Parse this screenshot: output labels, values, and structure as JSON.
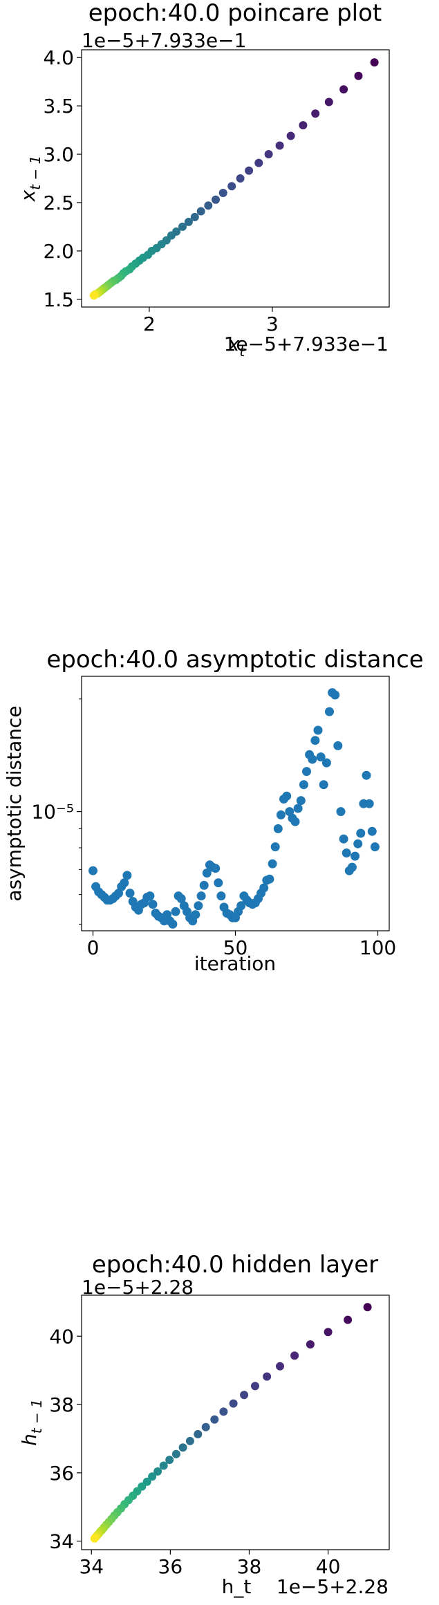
{
  "chart_data": [
    {
      "type": "scatter",
      "title": "epoch:40.0 poincare plot",
      "xlabel": "$x_t$",
      "ylabel": "$x_{t-1}$",
      "x_offset_text": "1e−5+7.933e−1",
      "y_offset_text": "1e−5+7.933e−1",
      "xticks": [
        "2",
        "3"
      ],
      "yticks": [
        "1.5",
        "2.0",
        "2.5",
        "3.0",
        "3.5",
        "4.0"
      ],
      "xlim": [
        1.45,
        3.95
      ],
      "ylim": [
        1.42,
        4.08
      ],
      "colormap": "viridis",
      "points": [
        {
          "x": 3.83,
          "y": 3.95
        },
        {
          "x": 3.7,
          "y": 3.81
        },
        {
          "x": 3.58,
          "y": 3.67
        },
        {
          "x": 3.46,
          "y": 3.54
        },
        {
          "x": 3.35,
          "y": 3.42
        },
        {
          "x": 3.25,
          "y": 3.3
        },
        {
          "x": 3.15,
          "y": 3.19
        },
        {
          "x": 3.06,
          "y": 3.09
        },
        {
          "x": 2.97,
          "y": 3.0
        },
        {
          "x": 2.89,
          "y": 2.91
        },
        {
          "x": 2.81,
          "y": 2.83
        },
        {
          "x": 2.74,
          "y": 2.75
        },
        {
          "x": 2.67,
          "y": 2.67
        },
        {
          "x": 2.6,
          "y": 2.6
        },
        {
          "x": 2.54,
          "y": 2.53
        },
        {
          "x": 2.48,
          "y": 2.47
        },
        {
          "x": 2.42,
          "y": 2.41
        },
        {
          "x": 2.37,
          "y": 2.35
        },
        {
          "x": 2.32,
          "y": 2.3
        },
        {
          "x": 2.27,
          "y": 2.25
        },
        {
          "x": 2.22,
          "y": 2.2
        },
        {
          "x": 2.18,
          "y": 2.16
        },
        {
          "x": 2.14,
          "y": 2.11
        },
        {
          "x": 2.1,
          "y": 2.07
        },
        {
          "x": 2.06,
          "y": 2.03
        },
        {
          "x": 2.02,
          "y": 2.0
        },
        {
          "x": 1.99,
          "y": 1.96
        },
        {
          "x": 1.95,
          "y": 1.93
        },
        {
          "x": 1.92,
          "y": 1.9
        },
        {
          "x": 1.89,
          "y": 1.87
        },
        {
          "x": 1.86,
          "y": 1.84
        },
        {
          "x": 1.84,
          "y": 1.81
        },
        {
          "x": 1.81,
          "y": 1.79
        },
        {
          "x": 1.79,
          "y": 1.77
        },
        {
          "x": 1.77,
          "y": 1.74
        },
        {
          "x": 1.75,
          "y": 1.72
        },
        {
          "x": 1.73,
          "y": 1.7
        },
        {
          "x": 1.71,
          "y": 1.69
        },
        {
          "x": 1.69,
          "y": 1.67
        },
        {
          "x": 1.67,
          "y": 1.65
        },
        {
          "x": 1.66,
          "y": 1.64
        },
        {
          "x": 1.64,
          "y": 1.62
        },
        {
          "x": 1.63,
          "y": 1.61
        },
        {
          "x": 1.62,
          "y": 1.6
        },
        {
          "x": 1.61,
          "y": 1.59
        },
        {
          "x": 1.6,
          "y": 1.58
        },
        {
          "x": 1.59,
          "y": 1.57
        },
        {
          "x": 1.58,
          "y": 1.56
        },
        {
          "x": 1.57,
          "y": 1.555
        },
        {
          "x": 1.56,
          "y": 1.55
        },
        {
          "x": 1.555,
          "y": 1.545
        },
        {
          "x": 1.55,
          "y": 1.54
        }
      ]
    },
    {
      "type": "scatter",
      "title": "epoch:40.0 asymptotic distance",
      "xlabel": "iteration",
      "ylabel": "asymptotic distance",
      "yscale": "log",
      "xticks": [
        "0",
        "50",
        "100"
      ],
      "yticks": [
        "10⁻⁵"
      ],
      "xlim": [
        -4,
        104
      ],
      "ylim": [
        4.8e-06,
        2.3e-05
      ],
      "color": "#1f77b4",
      "y": [
        6.95e-06,
        6.3e-06,
        6.1e-06,
        6e-06,
        5.9e-06,
        5.8e-06,
        5.8e-06,
        5.85e-06,
        5.95e-06,
        6.05e-06,
        6.3e-06,
        6.45e-06,
        6.75e-06,
        6.05e-06,
        5.75e-06,
        5.55e-06,
        5.45e-06,
        5.65e-06,
        5.7e-06,
        5.9e-06,
        5.95e-06,
        5.65e-06,
        5.35e-06,
        5.25e-06,
        5.2e-06,
        5.1e-06,
        5.3e-06,
        5.1e-06,
        5e-06,
        5.4e-06,
        5.95e-06,
        5.85e-06,
        5.6e-06,
        5.4e-06,
        5.2e-06,
        5.1e-06,
        5.3e-06,
        5.6e-06,
        5.95e-06,
        6.35e-06,
        6.85e-06,
        7.2e-06,
        7.1e-06,
        7.05e-06,
        6.45e-06,
        5.95e-06,
        5.55e-06,
        5.35e-06,
        5.3e-06,
        5.2e-06,
        5.2e-06,
        5.4e-06,
        5.6e-06,
        5.95e-06,
        5.8e-06,
        5.7e-06,
        5.65e-06,
        5.7e-06,
        5.85e-06,
        6.05e-06,
        6.25e-06,
        6.55e-06,
        6.6e-06,
        7.25e-06,
        8.05e-06,
        9e-06,
        9.8e-06,
        1.08e-05,
        1.1e-05,
        1e-05,
        9.6e-06,
        9.4e-06,
        1.02e-05,
        1.07e-05,
        1.18e-05,
        1.28e-05,
        1.42e-05,
        1.38e-05,
        1.55e-05,
        1.65e-05,
        1.4e-05,
        1.18e-05,
        1.35e-05,
        1.85e-05,
        2.08e-05,
        2.05e-05,
        1.5e-05,
        1e-05,
        8.45e-06,
        7.75e-06,
        6.95e-06,
        7.1e-06,
        7.6e-06,
        8.2e-06,
        8.75e-06,
        1.05e-05,
        1.25e-05,
        1.05e-05,
        8.85e-06,
        8.05e-06
      ],
      "x": [
        0,
        1,
        2,
        3,
        4,
        5,
        6,
        7,
        8,
        9,
        10,
        11,
        12,
        13,
        14,
        15,
        16,
        17,
        18,
        19,
        20,
        21,
        22,
        23,
        24,
        25,
        26,
        27,
        28,
        29,
        30,
        31,
        32,
        33,
        34,
        35,
        36,
        37,
        38,
        39,
        40,
        41,
        42,
        43,
        44,
        45,
        46,
        47,
        48,
        49,
        50,
        51,
        52,
        53,
        54,
        55,
        56,
        57,
        58,
        59,
        60,
        61,
        62,
        63,
        64,
        65,
        66,
        67,
        68,
        69,
        70,
        71,
        72,
        73,
        74,
        75,
        76,
        77,
        78,
        79,
        80,
        81,
        82,
        83,
        84,
        85,
        86,
        87,
        88,
        89,
        90,
        91,
        92,
        93,
        94,
        95,
        96,
        97,
        98,
        99
      ]
    },
    {
      "type": "scatter",
      "title": "epoch:40.0 hidden layer",
      "xlabel": "h_t",
      "ylabel": "$h_{t-1}$",
      "x_offset_text": "1e−5+2.28",
      "y_offset_text": "1e−5+2.28",
      "xticks": [
        "34",
        "36",
        "38",
        "40"
      ],
      "yticks": [
        "34",
        "36",
        "38",
        "40"
      ],
      "xlim": [
        33.75,
        41.55
      ],
      "ylim": [
        33.75,
        41.2
      ],
      "colormap": "viridis",
      "points": [
        {
          "x": 41.0,
          "y": 40.85
        },
        {
          "x": 40.5,
          "y": 40.48
        },
        {
          "x": 40.0,
          "y": 40.12
        },
        {
          "x": 39.55,
          "y": 39.76
        },
        {
          "x": 39.15,
          "y": 39.43
        },
        {
          "x": 38.78,
          "y": 39.12
        },
        {
          "x": 38.45,
          "y": 38.82
        },
        {
          "x": 38.15,
          "y": 38.54
        },
        {
          "x": 37.87,
          "y": 38.28
        },
        {
          "x": 37.6,
          "y": 38.03
        },
        {
          "x": 37.35,
          "y": 37.79
        },
        {
          "x": 37.12,
          "y": 37.56
        },
        {
          "x": 36.9,
          "y": 37.34
        },
        {
          "x": 36.7,
          "y": 37.13
        },
        {
          "x": 36.5,
          "y": 36.93
        },
        {
          "x": 36.32,
          "y": 36.74
        },
        {
          "x": 36.15,
          "y": 36.55
        },
        {
          "x": 35.98,
          "y": 36.38
        },
        {
          "x": 35.83,
          "y": 36.21
        },
        {
          "x": 35.68,
          "y": 36.04
        },
        {
          "x": 35.54,
          "y": 35.89
        },
        {
          "x": 35.41,
          "y": 35.74
        },
        {
          "x": 35.28,
          "y": 35.6
        },
        {
          "x": 35.16,
          "y": 35.46
        },
        {
          "x": 35.05,
          "y": 35.33
        },
        {
          "x": 34.94,
          "y": 35.2
        },
        {
          "x": 34.84,
          "y": 35.08
        },
        {
          "x": 34.75,
          "y": 34.96
        },
        {
          "x": 34.66,
          "y": 34.85
        },
        {
          "x": 34.58,
          "y": 34.75
        },
        {
          "x": 34.51,
          "y": 34.65
        },
        {
          "x": 34.44,
          "y": 34.56
        },
        {
          "x": 34.38,
          "y": 34.48
        },
        {
          "x": 34.32,
          "y": 34.4
        },
        {
          "x": 34.27,
          "y": 34.33
        },
        {
          "x": 34.22,
          "y": 34.27
        },
        {
          "x": 34.18,
          "y": 34.21
        },
        {
          "x": 34.14,
          "y": 34.16
        },
        {
          "x": 34.11,
          "y": 34.12
        },
        {
          "x": 34.08,
          "y": 34.08
        }
      ]
    }
  ]
}
